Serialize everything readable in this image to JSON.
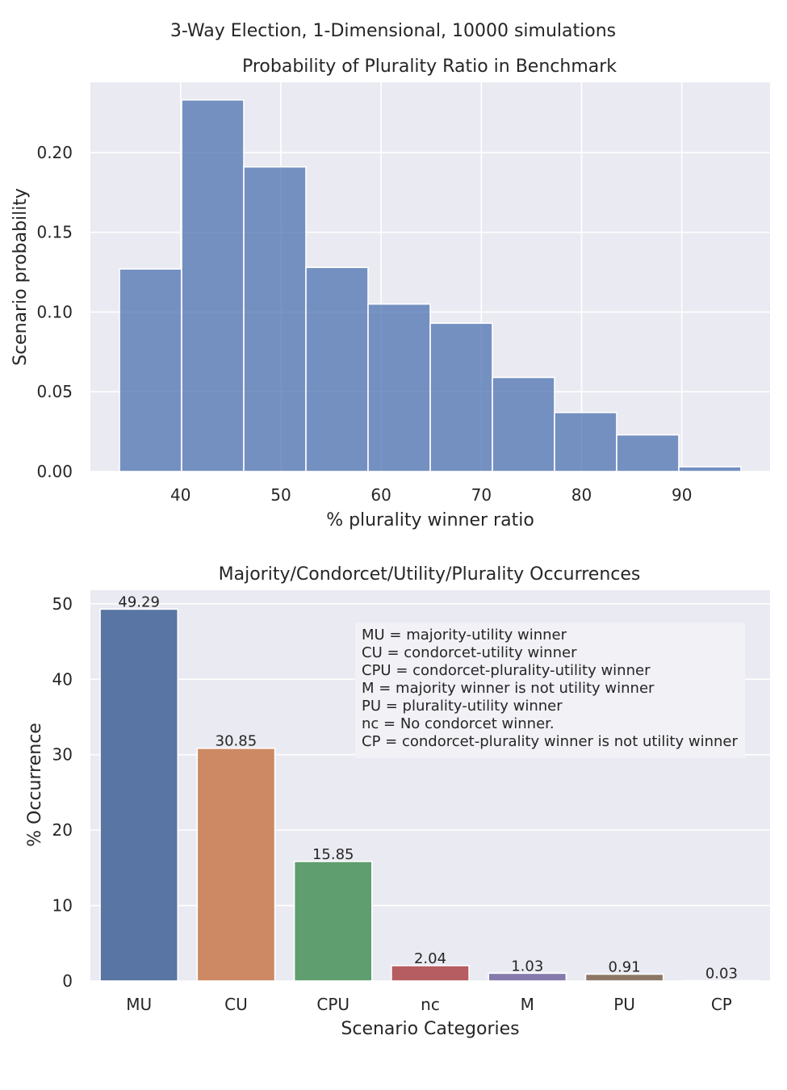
{
  "figure_title": "3-Way Election, 1-Dimensional, 10000 simulations",
  "chart_data": [
    {
      "type": "bar",
      "subtype": "histogram",
      "title": "Probability of Plurality Ratio in Benchmark",
      "xlabel": "% plurality winner ratio",
      "ylabel": "Scenario probability",
      "bins": [
        {
          "start": 33.9,
          "end": 40.1,
          "value": 0.127
        },
        {
          "start": 40.1,
          "end": 46.3,
          "value": 0.233
        },
        {
          "start": 46.3,
          "end": 52.5,
          "value": 0.191
        },
        {
          "start": 52.5,
          "end": 58.7,
          "value": 0.128
        },
        {
          "start": 58.7,
          "end": 64.9,
          "value": 0.105
        },
        {
          "start": 64.9,
          "end": 71.1,
          "value": 0.093
        },
        {
          "start": 71.1,
          "end": 77.3,
          "value": 0.059
        },
        {
          "start": 77.3,
          "end": 83.5,
          "value": 0.037
        },
        {
          "start": 83.5,
          "end": 89.7,
          "value": 0.023
        },
        {
          "start": 89.7,
          "end": 95.9,
          "value": 0.003
        }
      ],
      "xlim": [
        31,
        98.8
      ],
      "ylim": [
        0,
        0.244
      ],
      "xticks": [
        40,
        50,
        60,
        70,
        80,
        90
      ],
      "xtick_labels": [
        "40",
        "50",
        "60",
        "70",
        "80",
        "90"
      ],
      "yticks": [
        0,
        0.05,
        0.1,
        0.15,
        0.2
      ],
      "ytick_labels": [
        "0.00",
        "0.05",
        "0.10",
        "0.15",
        "0.20"
      ],
      "color": "#4c72b0",
      "grid": true,
      "background": "#eaeaf2"
    },
    {
      "type": "bar",
      "title": "Majority/Condorcet/Utility/Plurality Occurrences",
      "xlabel": "Scenario Categories",
      "ylabel": "% Occurrence",
      "categories": [
        "MU",
        "CU",
        "CPU",
        "nc",
        "M",
        "PU",
        "CP"
      ],
      "values": [
        49.29,
        30.85,
        15.85,
        2.04,
        1.03,
        0.91,
        0.03
      ],
      "data_labels": [
        "49.29",
        "30.85",
        "15.85",
        "2.04",
        "1.03",
        "0.91",
        "0.03"
      ],
      "colors": [
        "#5975a4",
        "#cc8963",
        "#5f9e6e",
        "#b55d60",
        "#857aab",
        "#8d7866",
        "#d095bf"
      ],
      "ylim": [
        0,
        51.8
      ],
      "yticks": [
        0,
        10,
        20,
        30,
        40,
        50
      ],
      "ytick_labels": [
        "0",
        "10",
        "20",
        "30",
        "40",
        "50"
      ],
      "grid": true,
      "background": "#eaeaf2",
      "legend": {
        "placement": "upper right",
        "entries": [
          "MU = majority-utility winner",
          "CU = condorcet-utility winner",
          "CPU = condorcet-plurality-utility winner",
          "M = majority winner is not utility winner",
          "PU = plurality-utility winner",
          "nc = No condorcet winner.",
          "CP = condorcet-plurality winner is not utility winner"
        ]
      }
    }
  ]
}
